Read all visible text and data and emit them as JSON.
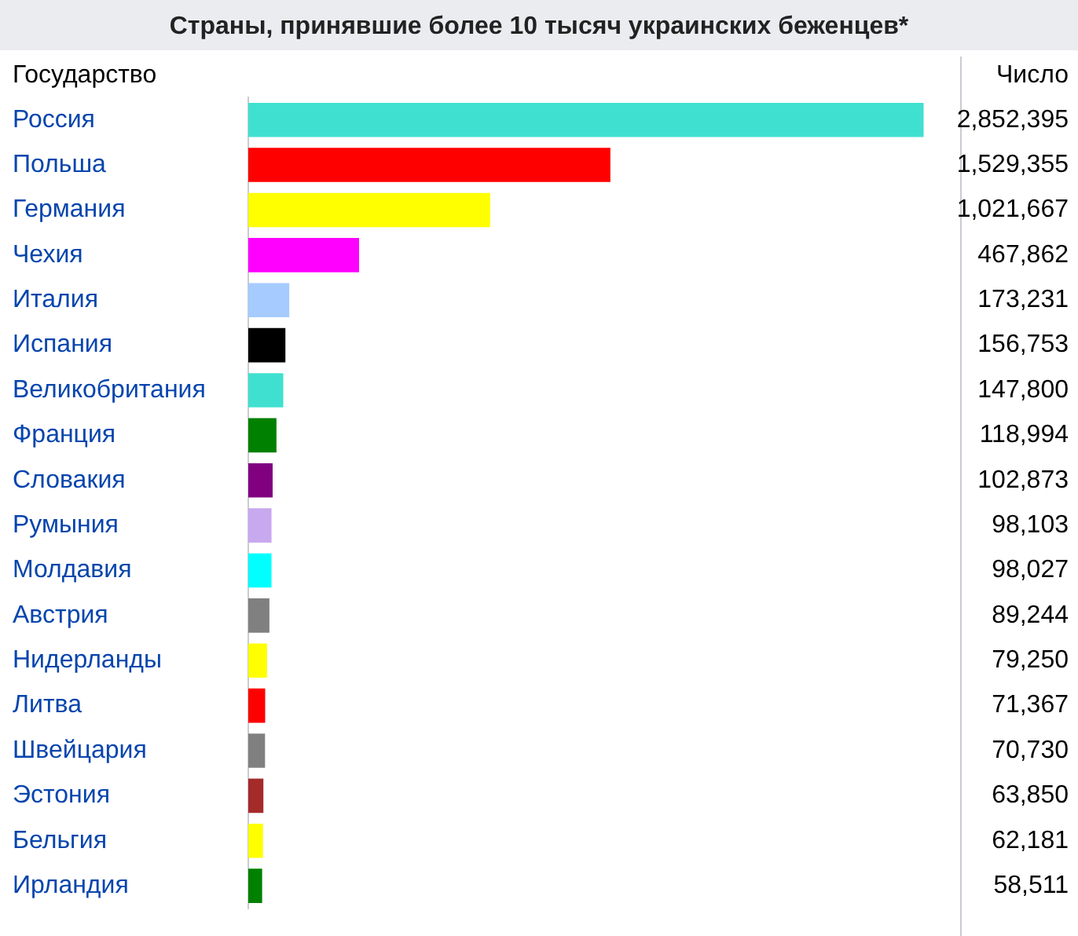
{
  "chart_data": {
    "type": "bar",
    "orientation": "horizontal",
    "title": "Страны, принявшие более 10 тысяч украинских беженцев*",
    "ylabel": "Государство",
    "xlabel": "Число",
    "categories": [
      "Россия",
      "Польша",
      "Германия",
      "Чехия",
      "Италия",
      "Испания",
      "Великобритания",
      "Франция",
      "Словакия",
      "Румыния",
      "Молдавия",
      "Австрия",
      "Нидерланды",
      "Литва",
      "Швейцария",
      "Эстония",
      "Бельгия",
      "Ирландия"
    ],
    "values": [
      2852395,
      1529355,
      1021667,
      467862,
      173231,
      156753,
      147800,
      118994,
      102873,
      98103,
      98027,
      89244,
      79250,
      71367,
      70730,
      63850,
      62181,
      58511
    ],
    "value_labels": [
      "2,852,395",
      "1,529,355",
      "1,021,667",
      "467,862",
      "173,231",
      "156,753",
      "147,800",
      "118,994",
      "102,873",
      "98,103",
      "98,027",
      "89,244",
      "79,250",
      "71,367",
      "70,730",
      "63,850",
      "62,181",
      "58,511"
    ],
    "colors": [
      "#40e0d0",
      "#ff0000",
      "#ffff00",
      "#ff00ff",
      "#a6cbff",
      "#000000",
      "#40e0d0",
      "#008000",
      "#800080",
      "#c8a8ee",
      "#00ffff",
      "#808080",
      "#ffff00",
      "#ff0000",
      "#808080",
      "#a52a2a",
      "#ffff00",
      "#008000"
    ],
    "xlim": [
      0,
      3000000
    ],
    "tick_labels": "y",
    "legend": false
  }
}
